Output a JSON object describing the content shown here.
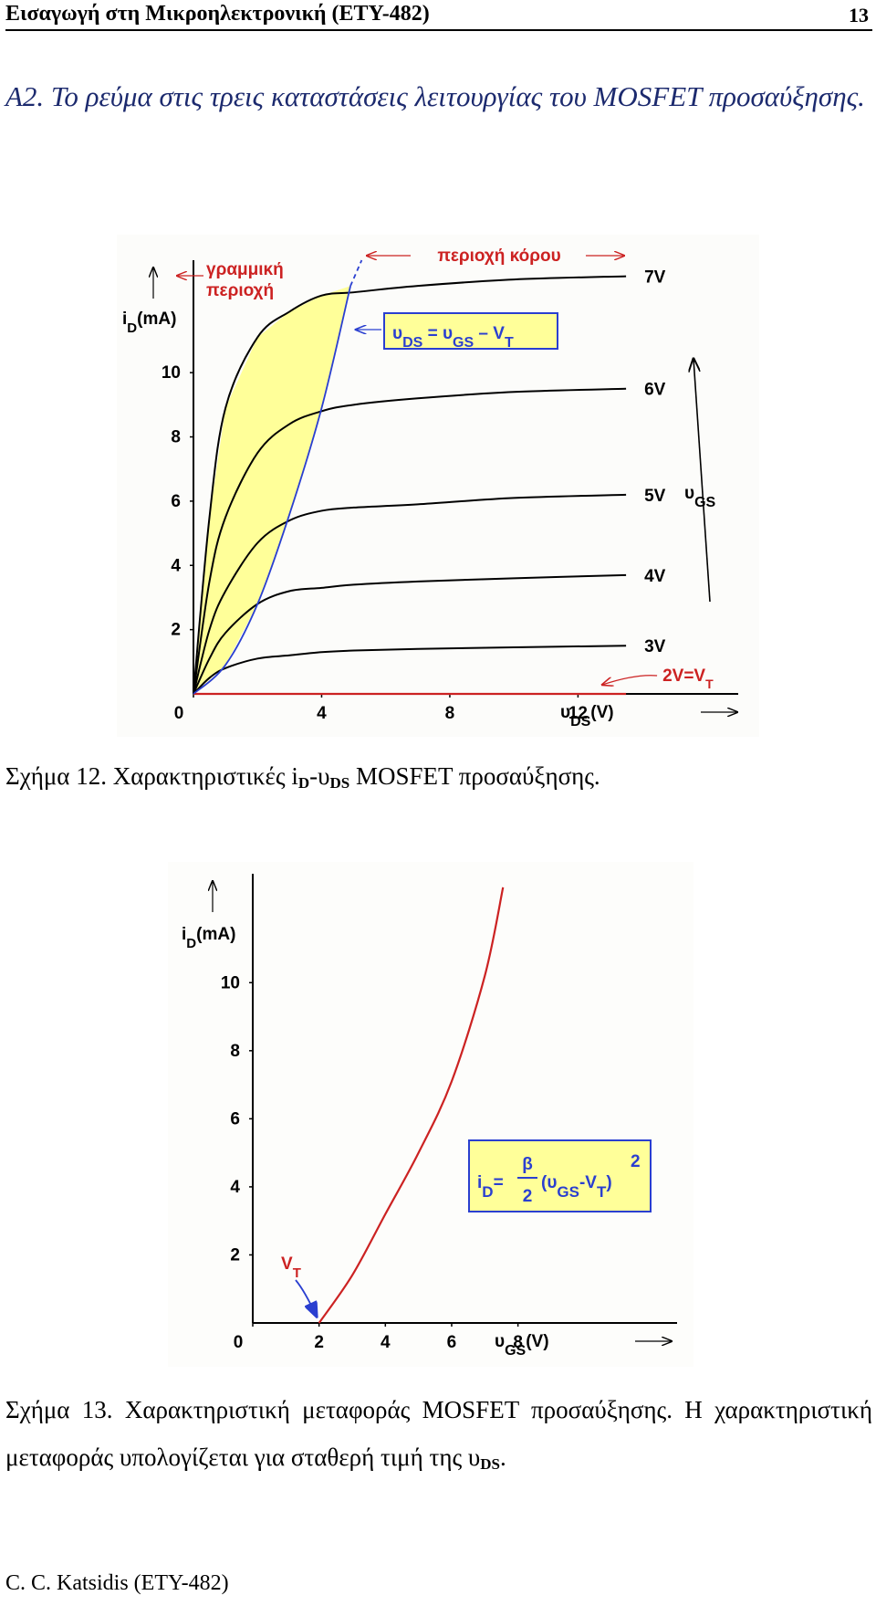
{
  "header": {
    "title": "Εισαγωγή στη Μικροηλεκτρονική (ΕΤΥ-482)",
    "page": "13"
  },
  "section": {
    "title": "A2. Το ρεύμα στις τρεις καταστάσεις λειτουργίας του MOSFET προσαύξησης."
  },
  "figures": [
    {
      "chart_data": {
        "type": "line",
        "x_label": [
          "υ",
          "DS",
          "(V)"
        ],
        "y_label": [
          "i",
          "D",
          "(mA)"
        ],
        "x": [
          0,
          0.5,
          1,
          2,
          3,
          4,
          5,
          7,
          10,
          13.5
        ],
        "series": [
          {
            "name": "7V",
            "color": "#000000",
            "values": [
              0,
              5.5,
              8.9,
              11.1,
              11.9,
              12.4,
              12.5,
              12.7,
              12.9,
              13.0
            ]
          },
          {
            "name": "6V",
            "color": "#000000",
            "values": [
              0,
              3.5,
              5.5,
              7.5,
              8.4,
              8.8,
              9.0,
              9.2,
              9.4,
              9.5
            ]
          },
          {
            "name": "5V",
            "color": "#000000",
            "values": [
              0,
              2.0,
              3.2,
              4.7,
              5.4,
              5.7,
              5.8,
              5.9,
              6.1,
              6.2
            ]
          },
          {
            "name": "4V",
            "color": "#000000",
            "values": [
              0,
              1.1,
              1.9,
              2.8,
              3.2,
              3.3,
              3.4,
              3.5,
              3.6,
              3.7
            ]
          },
          {
            "name": "3V",
            "color": "#000000",
            "values": [
              0,
              0.5,
              0.8,
              1.1,
              1.2,
              1.3,
              1.35,
              1.4,
              1.45,
              1.5
            ]
          },
          {
            "name": [
              "2V=V",
              "T"
            ],
            "color": "#cc2222",
            "values": [
              0,
              0,
              0,
              0,
              0,
              0,
              0,
              0,
              0,
              0
            ]
          }
        ],
        "boundary": {
          "label": [
            "υ",
            "DS",
            " = υ",
            "GS",
            " – V",
            "T"
          ],
          "color": "#2a3fd0",
          "x": [
            0,
            1,
            2,
            3,
            4,
            4.9
          ],
          "values": [
            0,
            0.9,
            2.8,
            5.6,
            8.9,
            12.7
          ],
          "dashed_x": [
            4.9,
            5.25
          ],
          "dashed_values": [
            12.7,
            13.5
          ]
        },
        "linear_region": [
          "γραμμική",
          "περιοχή"
        ],
        "saturation_region": "περιοχή κόρου",
        "vgs_label": [
          "υ",
          "GS"
        ],
        "fill_color": "#ffff99",
        "xlim": [
          0,
          17
        ],
        "ylim": [
          0,
          13.5
        ],
        "xticks": [
          0,
          4,
          8,
          12
        ],
        "yticks": [
          2,
          4,
          6,
          8,
          10
        ]
      },
      "caption": [
        "Σχήμα 12. Χαρακτηριστικές i",
        "D",
        "-υ",
        "DS",
        " MOSFET προσαύξησης."
      ]
    },
    {
      "chart_data": {
        "type": "line",
        "x_label": [
          "υ",
          "GS",
          "(V)"
        ],
        "y_label": [
          "i",
          "D",
          "(mA)"
        ],
        "x": [
          2,
          3,
          4,
          5,
          6,
          7,
          7.55
        ],
        "series": [
          {
            "color": "#cc2222",
            "values": [
              0,
              1.4,
              3.2,
              5.0,
              7.1,
              10.2,
              12.8
            ]
          }
        ],
        "vt_label": [
          "V",
          "T"
        ],
        "formula": {
          "lhs": [
            "i",
            "D",
            "="
          ],
          "numerator": "β",
          "denominator": "2",
          "rhs": [
            "(υ",
            "GS",
            "-V",
            "T",
            ")"
          ],
          "exponent": "2"
        },
        "xlim": [
          0,
          12.8
        ],
        "ylim": [
          0,
          13.2
        ],
        "xticks": [
          0,
          2,
          4,
          6,
          8
        ],
        "yticks": [
          2,
          4,
          6,
          8,
          10
        ]
      },
      "caption": [
        "Σχήμα 13. Χαρακτηριστική μεταφοράς MOSFET προσαύξησης. Η χαρακτηριστική μεταφοράς υπολογίζεται για σταθερή τιμή της υ",
        "DS",
        "."
      ]
    }
  ],
  "footer": "C. C. Katsidis (ETY-482)"
}
